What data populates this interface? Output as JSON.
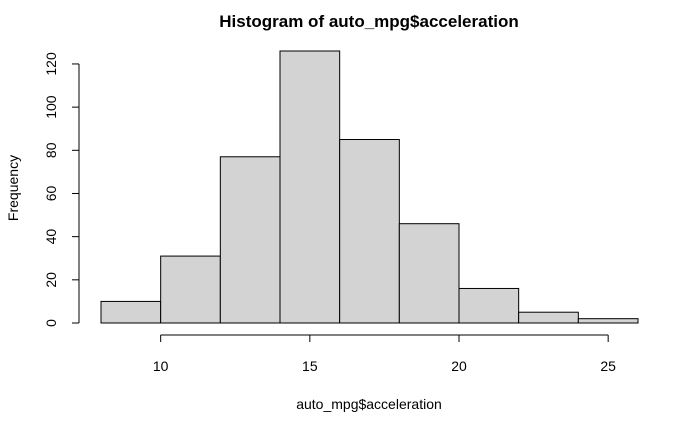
{
  "chart_data": {
    "type": "bar",
    "title": "Histogram of auto_mpg$acceleration",
    "xlabel": "auto_mpg$acceleration",
    "ylabel": "Frequency",
    "bins": [
      {
        "start": 8,
        "end": 10,
        "count": 10
      },
      {
        "start": 10,
        "end": 12,
        "count": 31
      },
      {
        "start": 12,
        "end": 14,
        "count": 77
      },
      {
        "start": 14,
        "end": 16,
        "count": 126
      },
      {
        "start": 16,
        "end": 18,
        "count": 85
      },
      {
        "start": 18,
        "end": 20,
        "count": 46
      },
      {
        "start": 20,
        "end": 22,
        "count": 16
      },
      {
        "start": 22,
        "end": 24,
        "count": 5
      },
      {
        "start": 24,
        "end": 26,
        "count": 2
      }
    ],
    "xlim": [
      8,
      26
    ],
    "ylim": [
      0,
      126
    ],
    "x_ticks": [
      10,
      15,
      20,
      25
    ],
    "x_tick_labels": [
      "10",
      "15",
      "20",
      "25"
    ],
    "y_ticks": [
      0,
      20,
      40,
      60,
      80,
      100,
      120
    ],
    "y_tick_labels": [
      "0",
      "20",
      "40",
      "60",
      "80",
      "100",
      "120"
    ],
    "bar_fill": "#d3d3d3",
    "bar_stroke": "#000000",
    "grid": false
  }
}
